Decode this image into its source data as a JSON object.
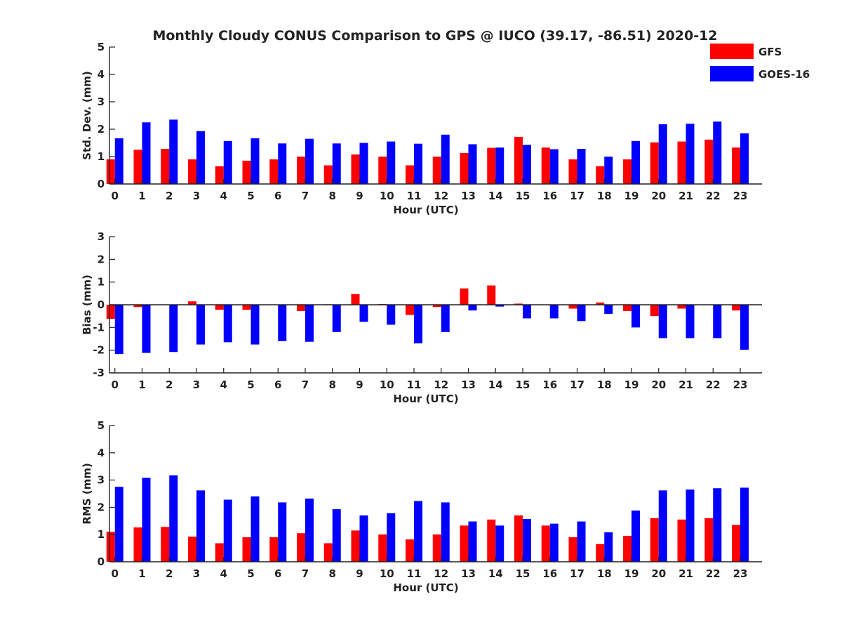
{
  "title": "Monthly Cloudy CONUS Comparison to GPS @ IUCO (39.17, -86.51) 2020-12",
  "legend": {
    "placement": "top-right",
    "items": [
      {
        "label": "GFS",
        "color": "#ff0000"
      },
      {
        "label": "GOES-16",
        "color": "#0000ff"
      }
    ]
  },
  "chart_data": [
    {
      "type": "bar",
      "xlabel": "Hour (UTC)",
      "ylabel": "Std. Dev. (mm)",
      "ylim": [
        0,
        5
      ],
      "yticks": [
        0,
        1,
        2,
        3,
        4,
        5
      ],
      "grid": false,
      "categories": [
        "0",
        "1",
        "2",
        "3",
        "4",
        "5",
        "6",
        "7",
        "8",
        "9",
        "10",
        "11",
        "12",
        "13",
        "14",
        "15",
        "16",
        "17",
        "18",
        "19",
        "20",
        "21",
        "22",
        "23"
      ],
      "series": [
        {
          "name": "GFS",
          "color": "#ff0000",
          "values": [
            0.9,
            1.25,
            1.28,
            0.9,
            0.65,
            0.85,
            0.9,
            1.0,
            0.68,
            1.08,
            1.0,
            0.68,
            1.0,
            1.13,
            1.32,
            1.72,
            1.33,
            0.9,
            0.65,
            0.9,
            1.52,
            1.55,
            1.62,
            1.33
          ]
        },
        {
          "name": "GOES-16",
          "color": "#0000ff",
          "values": [
            1.67,
            2.25,
            2.35,
            1.93,
            1.57,
            1.67,
            1.48,
            1.65,
            1.48,
            1.5,
            1.55,
            1.47,
            1.8,
            1.45,
            1.33,
            1.43,
            1.27,
            1.28,
            1.0,
            1.57,
            2.18,
            2.2,
            2.28,
            1.85
          ]
        }
      ]
    },
    {
      "type": "bar",
      "xlabel": "Hour (UTC)",
      "ylabel": "Bias (mm)",
      "ylim": [
        -3,
        3
      ],
      "yticks": [
        -3,
        -2,
        -1,
        0,
        1,
        2,
        3
      ],
      "grid": false,
      "zero_line": true,
      "categories": [
        "0",
        "1",
        "2",
        "3",
        "4",
        "5",
        "6",
        "7",
        "8",
        "9",
        "10",
        "11",
        "12",
        "13",
        "14",
        "15",
        "16",
        "17",
        "18",
        "19",
        "20",
        "21",
        "22",
        "23"
      ],
      "series": [
        {
          "name": "GFS",
          "color": "#ff0000",
          "values": [
            -0.62,
            -0.1,
            0.0,
            0.15,
            -0.22,
            -0.22,
            0.0,
            -0.28,
            0.02,
            0.47,
            0.03,
            -0.45,
            -0.1,
            0.72,
            0.85,
            0.05,
            0.0,
            -0.17,
            0.1,
            -0.28,
            -0.5,
            -0.17,
            0.0,
            -0.25
          ]
        },
        {
          "name": "GOES-16",
          "color": "#0000ff",
          "values": [
            -2.17,
            -2.12,
            -2.08,
            -1.75,
            -1.65,
            -1.75,
            -1.6,
            -1.63,
            -1.2,
            -0.75,
            -0.88,
            -1.7,
            -1.2,
            -0.25,
            -0.08,
            -0.6,
            -0.6,
            -0.72,
            -0.4,
            -1.0,
            -1.47,
            -1.47,
            -1.47,
            -1.98
          ]
        }
      ]
    },
    {
      "type": "bar",
      "xlabel": "Hour (UTC)",
      "ylabel": "RMS (mm)",
      "ylim": [
        0,
        5
      ],
      "yticks": [
        0,
        1,
        2,
        3,
        4,
        5
      ],
      "grid": false,
      "categories": [
        "0",
        "1",
        "2",
        "3",
        "4",
        "5",
        "6",
        "7",
        "8",
        "9",
        "10",
        "11",
        "12",
        "13",
        "14",
        "15",
        "16",
        "17",
        "18",
        "19",
        "20",
        "21",
        "22",
        "23"
      ],
      "series": [
        {
          "name": "GFS",
          "color": "#ff0000",
          "values": [
            1.1,
            1.26,
            1.28,
            0.92,
            0.68,
            0.9,
            0.9,
            1.05,
            0.68,
            1.15,
            1.0,
            0.82,
            1.0,
            1.33,
            1.55,
            1.7,
            1.33,
            0.9,
            0.65,
            0.95,
            1.6,
            1.55,
            1.6,
            1.35
          ]
        },
        {
          "name": "GOES-16",
          "color": "#0000ff",
          "values": [
            2.75,
            3.08,
            3.17,
            2.62,
            2.28,
            2.4,
            2.18,
            2.32,
            1.93,
            1.7,
            1.78,
            2.23,
            2.18,
            1.48,
            1.33,
            1.57,
            1.4,
            1.48,
            1.08,
            1.88,
            2.62,
            2.65,
            2.7,
            2.72
          ]
        }
      ]
    }
  ]
}
